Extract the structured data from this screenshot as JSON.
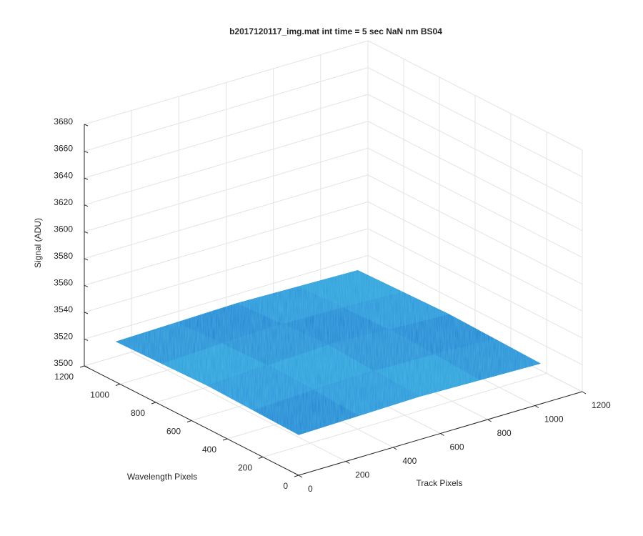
{
  "chart_data": {
    "type": "surface3d",
    "title": "b2017120117_img.mat int time = 5 sec  NaN nm BS04",
    "xlabel": "Track Pixels",
    "ylabel": "Wavelength Pixels",
    "zlabel": "Signal (ADU)",
    "x": [
      1,
      256,
      512,
      768,
      1024
    ],
    "y": [
      1,
      256,
      512,
      768,
      1024
    ],
    "z": [
      [
        3530,
        3531,
        3532,
        3531,
        3530
      ],
      [
        3531,
        3533,
        3534,
        3533,
        3531
      ],
      [
        3532,
        3534,
        3536,
        3534,
        3532
      ],
      [
        3531,
        3533,
        3534,
        3533,
        3531
      ],
      [
        3530,
        3531,
        3532,
        3531,
        3530
      ]
    ],
    "color": "#1f8ad6",
    "xlim": [
      0,
      1200
    ],
    "xticks": [
      0,
      200,
      400,
      600,
      800,
      1000,
      1200
    ],
    "ylim": [
      0,
      1200
    ],
    "yticks": [
      0,
      200,
      400,
      600,
      800,
      1000,
      1200
    ],
    "zlim": [
      3500,
      3680
    ],
    "zticks": [
      3500,
      3520,
      3540,
      3560,
      3580,
      3600,
      3620,
      3640,
      3660,
      3680
    ],
    "grid": true
  }
}
